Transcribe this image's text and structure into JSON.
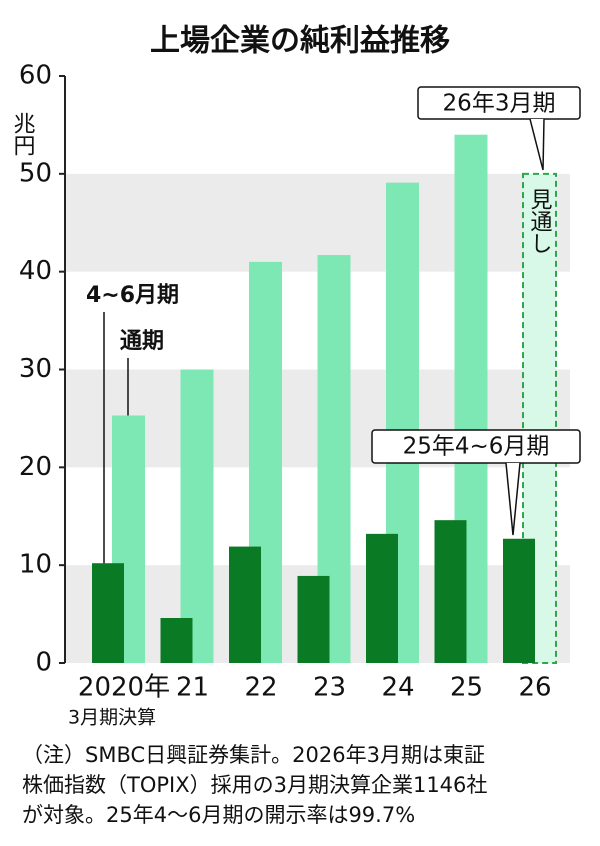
{
  "chart_data": {
    "type": "bar",
    "title": "上場企業の純利益推移",
    "y_unit": "兆円",
    "categories": [
      "2020年",
      "21",
      "22",
      "23",
      "24",
      "25",
      "26"
    ],
    "category_note": "3月期決算",
    "series": [
      {
        "name": "4~6月期",
        "color": "#0b7a24",
        "values": [
          10.2,
          4.6,
          11.9,
          8.9,
          13.2,
          14.6,
          12.7
        ]
      },
      {
        "name": "通期",
        "color": "#7ee8b4",
        "values": [
          25.3,
          30.0,
          41.0,
          41.7,
          49.1,
          54.0,
          50
        ]
      }
    ],
    "ylim": [
      0,
      60
    ],
    "yticks": [
      0,
      10,
      20,
      30,
      40,
      50,
      60
    ],
    "grid_bands": true,
    "annotations": [
      "26年3月期",
      "25年4~6月期",
      "見通し"
    ],
    "notes": [
      "（注）SMBC日興証券集計。2026年3月期は東証",
      "株価指数（TOPIX）採用の3月期決算企業1146社",
      "が対象。25年4～6月期の開示率は99.7%"
    ]
  }
}
